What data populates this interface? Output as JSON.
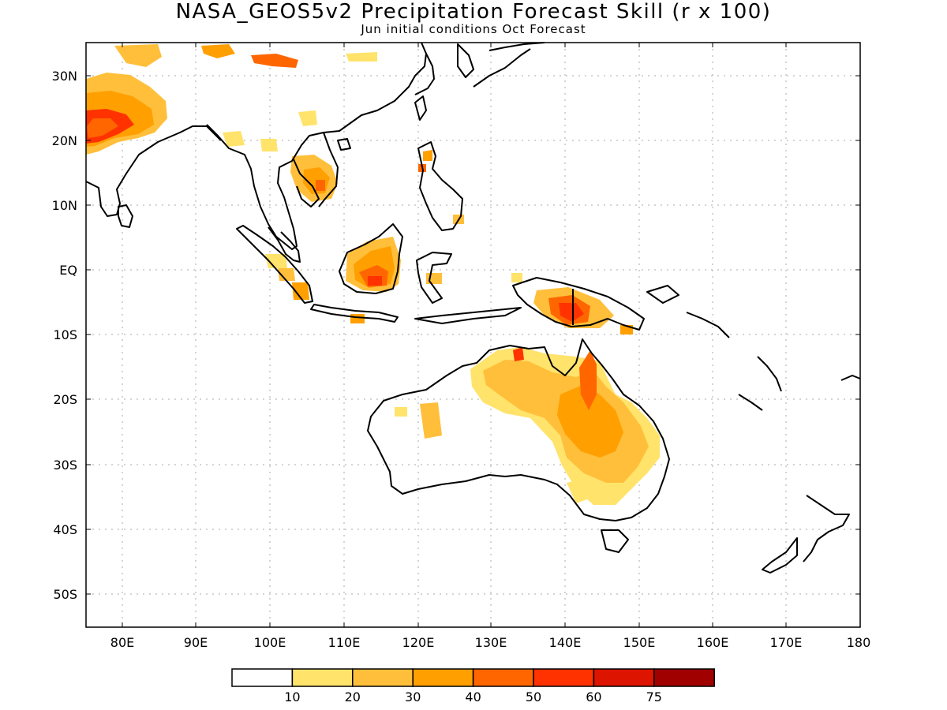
{
  "title": "NASA_GEOS5v2 Precipitation Forecast Skill (r x 100)",
  "subtitle": "Jun initial conditions  Oct Forecast",
  "x_labels": [
    "80E",
    "90E",
    "100E",
    "110E",
    "120E",
    "130E",
    "140E",
    "150E",
    "160E",
    "170E",
    "180"
  ],
  "y_labels": [
    "30N",
    "20N",
    "10N",
    "EQ",
    "10S",
    "20S",
    "30S",
    "40S",
    "50S"
  ],
  "colorbar": {
    "colors": [
      "#ffffff",
      "#ffe36b",
      "#ffbf3a",
      "#ff9f00",
      "#ff6600",
      "#ff3200",
      "#dc1400",
      "#a00000"
    ],
    "labels": [
      "10",
      "20",
      "30",
      "40",
      "50",
      "60",
      "75"
    ]
  },
  "map_extent": {
    "lon": [
      75,
      180
    ],
    "lat": [
      -55,
      35
    ]
  }
}
